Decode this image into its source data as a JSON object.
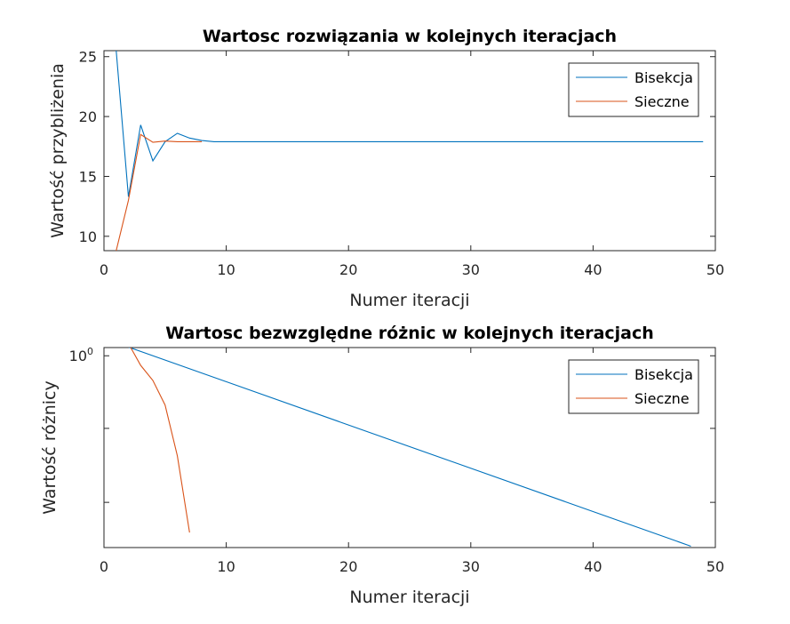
{
  "colors": {
    "series1": "#0072BD",
    "series2": "#D95319",
    "axis": "#262626"
  },
  "chart_data": [
    {
      "type": "line",
      "title": "Wartosc rozwiązania w kolejnych iteracjach",
      "xlabel": "Numer iteracji",
      "ylabel": "Wartość przybliżenia",
      "xlim": [
        0,
        50
      ],
      "ylim": [
        8.8,
        25.5
      ],
      "yscale": "linear",
      "xticks": [
        0,
        10,
        20,
        30,
        40,
        50
      ],
      "yticks": [
        10,
        15,
        20,
        25
      ],
      "legend_position": "top-right",
      "series": [
        {
          "name": "Bisekcja",
          "x": [
            1,
            2,
            3,
            4,
            5,
            6,
            7,
            8,
            9,
            10,
            11,
            12,
            13,
            14,
            15,
            16,
            17,
            18,
            19,
            20,
            21,
            22,
            23,
            24,
            25,
            26,
            27,
            28,
            29,
            30,
            31,
            32,
            33,
            34,
            35,
            36,
            37,
            38,
            39,
            40,
            41,
            42,
            43,
            44,
            45,
            46,
            47,
            48,
            49
          ],
          "y": [
            25.5,
            13.3,
            19.3,
            16.3,
            17.9,
            18.6,
            18.2,
            18.0,
            17.9,
            17.9,
            17.9,
            17.9,
            17.9,
            17.9,
            17.9,
            17.9,
            17.9,
            17.9,
            17.9,
            17.9,
            17.9,
            17.9,
            17.9,
            17.9,
            17.9,
            17.9,
            17.9,
            17.9,
            17.9,
            17.9,
            17.9,
            17.9,
            17.9,
            17.9,
            17.9,
            17.9,
            17.9,
            17.9,
            17.9,
            17.9,
            17.9,
            17.9,
            17.9,
            17.9,
            17.9,
            17.9,
            17.9,
            17.9,
            17.9
          ]
        },
        {
          "name": "Sieczne",
          "x": [
            1,
            2,
            3,
            4,
            5,
            6,
            7,
            8
          ],
          "y": [
            8.8,
            13.0,
            18.5,
            17.85,
            17.95,
            17.9,
            17.9,
            17.9
          ]
        }
      ]
    },
    {
      "type": "line",
      "title": "Wartosc bezwzględne różnic w kolejnych iteracjach",
      "xlabel": "Numer iteracji",
      "ylabel": "Wartość różnicy",
      "xlim": [
        0,
        50
      ],
      "yscale": "log",
      "ylim_log10": [
        -14.0,
        0.6
      ],
      "xticks": [
        0,
        10,
        20,
        30,
        40,
        50
      ],
      "yticks_labeled": [
        {
          "log10": 0,
          "label": "10",
          "exponent": "0"
        }
      ],
      "yticks_unlabeled_log10": [
        -5.3,
        -10.7
      ],
      "legend_position": "top-right",
      "series": [
        {
          "name": "Bisekcja",
          "x": [
            1,
            48
          ],
          "log10y": [
            0.95,
            -13.9
          ]
        },
        {
          "name": "Sieczne",
          "x": [
            1,
            2,
            3,
            4,
            5,
            6,
            7
          ],
          "log10y": [
            0.75,
            0.9,
            -0.7,
            -1.8,
            -3.6,
            -7.3,
            -12.9
          ]
        }
      ]
    }
  ]
}
